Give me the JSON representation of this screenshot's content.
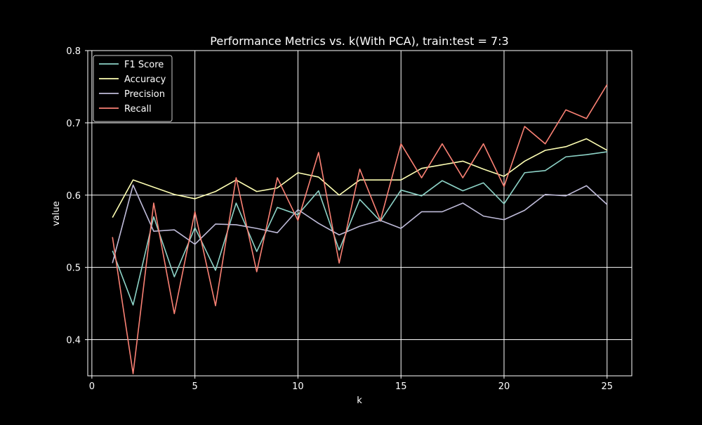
{
  "chart_data": {
    "type": "line",
    "title": "Performance Metrics vs. k(With PCA), train:test = 7:3",
    "xlabel": "k",
    "ylabel": "value",
    "xlim": [
      -0.2,
      26.2
    ],
    "ylim": [
      0.35,
      0.8
    ],
    "xticks": [
      0,
      5,
      10,
      15,
      20,
      25
    ],
    "yticks": [
      0.4,
      0.5,
      0.6,
      0.7,
      0.8
    ],
    "grid": true,
    "legend_position": "top-left",
    "background": "#000000",
    "x": [
      1,
      2,
      3,
      4,
      5,
      6,
      7,
      8,
      9,
      10,
      11,
      12,
      13,
      14,
      15,
      16,
      17,
      18,
      19,
      20,
      21,
      22,
      23,
      24,
      25
    ],
    "series": [
      {
        "name": "F1 Score",
        "color": "#8dd3c7",
        "values": [
          0.523,
          0.448,
          0.57,
          0.487,
          0.555,
          0.496,
          0.589,
          0.522,
          0.583,
          0.573,
          0.606,
          0.524,
          0.594,
          0.564,
          0.607,
          0.599,
          0.62,
          0.606,
          0.617,
          0.588,
          0.631,
          0.634,
          0.653,
          0.656,
          0.66
        ]
      },
      {
        "name": "Accuracy",
        "color": "#feffb3",
        "values": [
          0.569,
          0.621,
          0.611,
          0.601,
          0.595,
          0.605,
          0.621,
          0.605,
          0.61,
          0.631,
          0.625,
          0.6,
          0.621,
          0.621,
          0.621,
          0.637,
          0.642,
          0.647,
          0.636,
          0.626,
          0.647,
          0.662,
          0.667,
          0.678,
          0.662
        ]
      },
      {
        "name": "Precision",
        "color": "#bfbbd9",
        "values": [
          0.506,
          0.614,
          0.55,
          0.552,
          0.532,
          0.56,
          0.559,
          0.554,
          0.548,
          0.58,
          0.561,
          0.545,
          0.557,
          0.565,
          0.554,
          0.577,
          0.577,
          0.589,
          0.571,
          0.566,
          0.579,
          0.601,
          0.599,
          0.613,
          0.587
        ]
      },
      {
        "name": "Recall",
        "color": "#fa8174",
        "values": [
          0.542,
          0.353,
          0.589,
          0.436,
          0.577,
          0.447,
          0.624,
          0.494,
          0.624,
          0.565,
          0.659,
          0.506,
          0.636,
          0.565,
          0.671,
          0.624,
          0.671,
          0.624,
          0.671,
          0.612,
          0.695,
          0.671,
          0.718,
          0.706,
          0.753
        ]
      }
    ]
  }
}
